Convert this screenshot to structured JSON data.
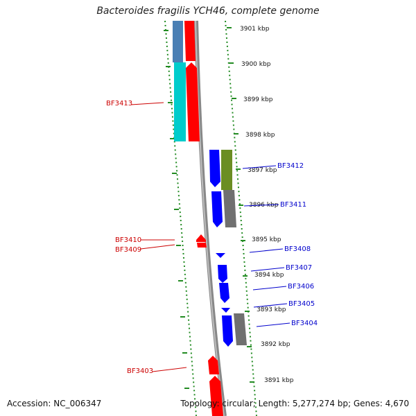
{
  "title": "Bacteroides fragilis YCH46, complete genome",
  "footer": {
    "accession": "Accession: NC_006347",
    "summary": "Topology: circular; Length: 5,277,274 bp; Genes: 4,670"
  },
  "colors": {
    "forward_label": "#cc0000",
    "reverse_label": "#0000cc",
    "red_cds": "#ff0000",
    "blue_cds": "#0000ff",
    "steelblue_cog": "#4a7fb4",
    "cyan_cog": "#00cccc",
    "olive_cog": "#6b8e23",
    "gray_cog": "#707070",
    "backbone": "#888888",
    "tick_green": "#228b22"
  },
  "kbp_labels": [
    "3901 kbp",
    "3900 kbp",
    "3899 kbp",
    "3898 kbp",
    "3897 kbp",
    "3896 kbp",
    "3895 kbp",
    "3894 kbp",
    "3893 kbp",
    "3892 kbp",
    "3891 kbp"
  ],
  "gene_labels": [
    {
      "text": "BF3413",
      "strand": "forward"
    },
    {
      "text": "BF3410",
      "strand": "forward"
    },
    {
      "text": "BF3409",
      "strand": "forward"
    },
    {
      "text": "BF3403",
      "strand": "forward"
    },
    {
      "text": "BF3412",
      "strand": "reverse"
    },
    {
      "text": "BF3411",
      "strand": "reverse"
    },
    {
      "text": "BF3408",
      "strand": "reverse"
    },
    {
      "text": "BF3407",
      "strand": "reverse"
    },
    {
      "text": "BF3406",
      "strand": "reverse"
    },
    {
      "text": "BF3405",
      "strand": "reverse"
    },
    {
      "text": "BF3404",
      "strand": "reverse"
    }
  ]
}
